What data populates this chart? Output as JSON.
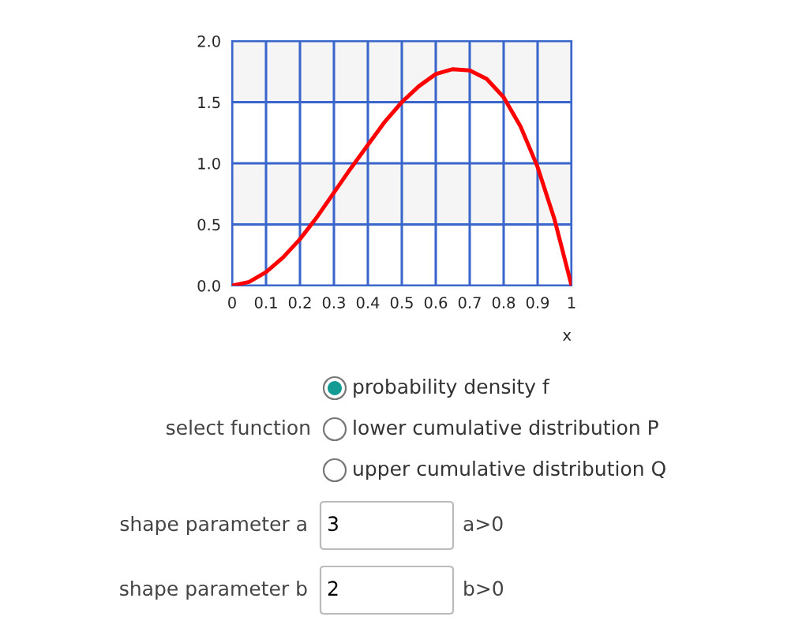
{
  "chart_data": {
    "type": "line",
    "xlabel": "x",
    "x": [
      0,
      0.05,
      0.1,
      0.15,
      0.2,
      0.25,
      0.3,
      0.35,
      0.4,
      0.45,
      0.5,
      0.55,
      0.6,
      0.65,
      0.7,
      0.75,
      0.8,
      0.85,
      0.9,
      0.95,
      1
    ],
    "series": [
      {
        "color": "#ff0000",
        "values": [
          0,
          0.03,
          0.11,
          0.23,
          0.38,
          0.56,
          0.76,
          0.96,
          1.15,
          1.34,
          1.5,
          1.63,
          1.73,
          1.77,
          1.76,
          1.69,
          1.54,
          1.3,
          0.97,
          0.54,
          0
        ]
      }
    ],
    "xlim": [
      0,
      1
    ],
    "xticks": [
      0,
      0.1,
      0.2,
      0.3,
      0.4,
      0.5,
      0.6,
      0.7,
      0.8,
      0.9,
      1
    ],
    "ylim": [
      0,
      2
    ],
    "yticks": [
      {
        "value": 0,
        "label": "0.0"
      },
      {
        "value": 0.5,
        "label": "0.5"
      },
      {
        "value": 1,
        "label": "1.0"
      },
      {
        "value": 1.5,
        "label": "1.5"
      },
      {
        "value": 2,
        "label": "2.0"
      }
    ],
    "grid": true,
    "marker": "none",
    "line_style": "solid",
    "bands": [
      {
        "axis": "y",
        "from": 0.5,
        "to": 1,
        "color": "#f5f5f5"
      },
      {
        "axis": "y",
        "from": 1.5,
        "to": 2,
        "color": "#f5f5f5"
      }
    ],
    "annotations": [
      "probability density f",
      "select function",
      "lower cumulative distribution P",
      "upper cumulative distribution Q",
      "shape parameter a",
      "3",
      "a>0",
      "shape parameter b",
      "2",
      "b>0"
    ]
  }
}
